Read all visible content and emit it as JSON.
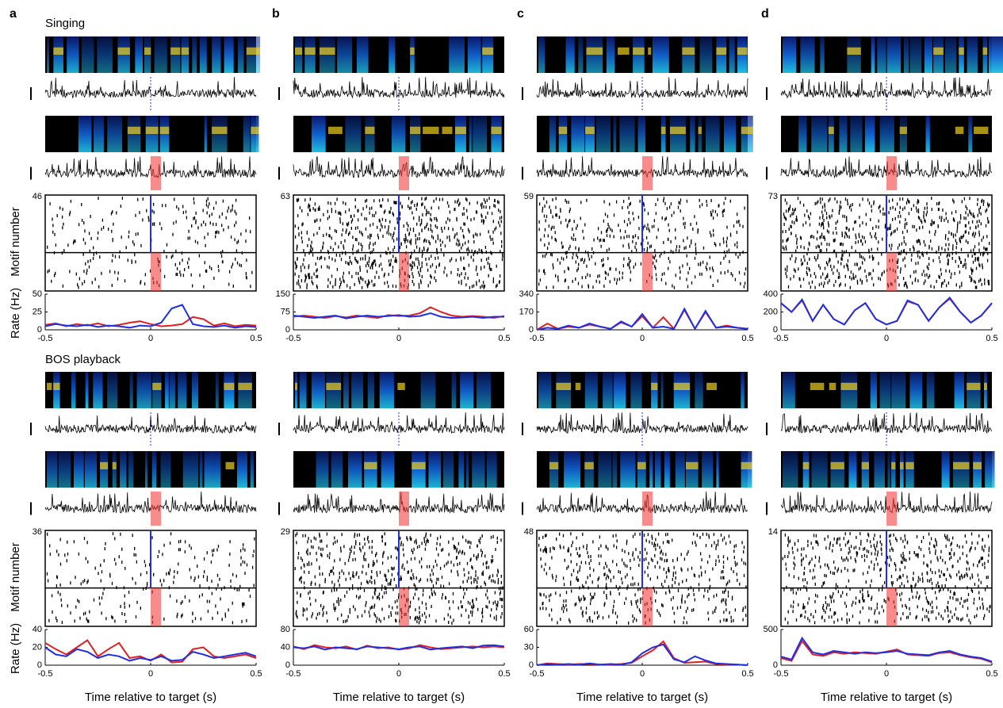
{
  "figure": {
    "panel_labels": [
      "a",
      "b",
      "c",
      "d"
    ],
    "sections": [
      "Singing",
      "BOS playback"
    ],
    "raster_ylabel": "Motif number",
    "rate_ylabel": "Rate (Hz)",
    "xlabel": "Time relative to target (s)"
  },
  "chart_data": [
    {
      "type": "line",
      "raster_yticks": [
        46
      ],
      "xlim": [
        -0.5,
        0.5
      ],
      "xticks": [
        -0.5,
        0,
        0.5
      ],
      "ylim": [
        0,
        50
      ],
      "yticks": [
        0,
        25,
        50
      ],
      "x": [
        -0.5,
        -0.45,
        -0.4,
        -0.35,
        -0.3,
        -0.25,
        -0.2,
        -0.15,
        -0.1,
        -0.05,
        0,
        0.05,
        0.1,
        0.15,
        0.2,
        0.25,
        0.3,
        0.35,
        0.4,
        0.45,
        0.5
      ],
      "series": [
        {
          "color": "#e02020",
          "values": [
            7,
            9,
            5,
            8,
            6,
            9,
            5,
            7,
            10,
            12,
            8,
            5,
            6,
            8,
            18,
            15,
            6,
            9,
            5,
            7,
            6
          ]
        },
        {
          "color": "#2030e0",
          "values": [
            5,
            8,
            6,
            5,
            7,
            4,
            6,
            5,
            3,
            6,
            5,
            10,
            30,
            35,
            8,
            5,
            4,
            6,
            3,
            5,
            4
          ]
        }
      ]
    },
    {
      "type": "line",
      "raster_yticks": [
        63
      ],
      "xlim": [
        -0.5,
        0.5
      ],
      "xticks": [
        -0.5,
        0,
        0.5
      ],
      "ylim": [
        0,
        150
      ],
      "yticks": [
        0,
        75,
        150
      ],
      "x": [
        -0.5,
        -0.45,
        -0.4,
        -0.35,
        -0.3,
        -0.25,
        -0.2,
        -0.15,
        -0.1,
        -0.05,
        0,
        0.05,
        0.1,
        0.15,
        0.2,
        0.25,
        0.3,
        0.35,
        0.4,
        0.45,
        0.5
      ],
      "series": [
        {
          "color": "#e02020",
          "values": [
            55,
            60,
            55,
            50,
            58,
            52,
            60,
            55,
            50,
            62,
            58,
            60,
            70,
            95,
            75,
            60,
            55,
            58,
            55,
            50,
            58
          ]
        },
        {
          "color": "#2030e0",
          "values": [
            60,
            55,
            50,
            55,
            60,
            48,
            55,
            60,
            55,
            58,
            62,
            55,
            58,
            70,
            55,
            50,
            52,
            55,
            50,
            55,
            55
          ]
        }
      ]
    },
    {
      "type": "line",
      "raster_yticks": [
        59
      ],
      "xlim": [
        -0.5,
        0.5
      ],
      "xticks": [
        -0.5,
        0,
        0.5
      ],
      "ylim": [
        0,
        340
      ],
      "yticks": [
        0,
        170,
        340
      ],
      "x": [
        -0.5,
        -0.45,
        -0.4,
        -0.35,
        -0.3,
        -0.25,
        -0.2,
        -0.15,
        -0.1,
        -0.05,
        0,
        0.05,
        0.1,
        0.15,
        0.2,
        0.25,
        0.3,
        0.35,
        0.4,
        0.45,
        0.5
      ],
      "series": [
        {
          "color": "#e02020",
          "values": [
            0,
            60,
            10,
            30,
            20,
            50,
            30,
            10,
            70,
            30,
            130,
            20,
            120,
            10,
            190,
            10,
            170,
            20,
            40,
            20,
            10
          ]
        },
        {
          "color": "#2030e0",
          "values": [
            0,
            20,
            10,
            40,
            20,
            60,
            30,
            10,
            80,
            30,
            150,
            20,
            30,
            10,
            200,
            10,
            180,
            20,
            30,
            20,
            10
          ]
        }
      ]
    },
    {
      "type": "line",
      "raster_yticks": [
        73
      ],
      "xlim": [
        -0.5,
        0.5
      ],
      "xticks": [
        -0.5,
        0,
        0.5
      ],
      "ylim": [
        0,
        400
      ],
      "yticks": [
        0,
        200,
        400
      ],
      "x": [
        -0.5,
        -0.45,
        -0.4,
        -0.35,
        -0.3,
        -0.25,
        -0.2,
        -0.15,
        -0.1,
        -0.05,
        0,
        0.05,
        0.1,
        0.15,
        0.2,
        0.25,
        0.3,
        0.35,
        0.4,
        0.45,
        0.5
      ],
      "series": [
        {
          "color": "#e02020",
          "values": [
            300,
            200,
            330,
            100,
            280,
            120,
            60,
            220,
            300,
            120,
            60,
            100,
            320,
            280,
            100,
            250,
            350,
            200,
            80,
            160,
            300
          ]
        },
        {
          "color": "#2030e0",
          "values": [
            300,
            200,
            340,
            100,
            280,
            120,
            60,
            220,
            300,
            120,
            60,
            100,
            330,
            280,
            100,
            250,
            360,
            200,
            80,
            160,
            300
          ]
        }
      ]
    },
    {
      "type": "line",
      "raster_yticks": [
        36
      ],
      "xlim": [
        -0.5,
        0.5
      ],
      "xticks": [
        -0.5,
        0,
        0.5
      ],
      "ylim": [
        0,
        40
      ],
      "yticks": [
        0,
        20,
        40
      ],
      "x": [
        -0.5,
        -0.45,
        -0.4,
        -0.35,
        -0.3,
        -0.25,
        -0.2,
        -0.15,
        -0.1,
        -0.05,
        0,
        0.05,
        0.1,
        0.15,
        0.2,
        0.25,
        0.3,
        0.35,
        0.4,
        0.45,
        0.5
      ],
      "series": [
        {
          "color": "#e02020",
          "values": [
            25,
            18,
            12,
            20,
            28,
            10,
            18,
            25,
            8,
            10,
            5,
            12,
            3,
            4,
            18,
            20,
            10,
            8,
            10,
            12,
            8
          ]
        },
        {
          "color": "#2030e0",
          "values": [
            20,
            12,
            10,
            18,
            15,
            8,
            12,
            10,
            5,
            8,
            6,
            10,
            5,
            6,
            15,
            12,
            8,
            10,
            12,
            14,
            10
          ]
        }
      ]
    },
    {
      "type": "line",
      "raster_yticks": [
        29
      ],
      "xlim": [
        -0.5,
        0.5
      ],
      "xticks": [
        -0.5,
        0,
        0.5
      ],
      "ylim": [
        0,
        80
      ],
      "yticks": [
        0,
        40,
        80
      ],
      "x": [
        -0.5,
        -0.45,
        -0.4,
        -0.35,
        -0.3,
        -0.25,
        -0.2,
        -0.15,
        -0.1,
        -0.05,
        0,
        0.05,
        0.1,
        0.15,
        0.2,
        0.25,
        0.3,
        0.35,
        0.4,
        0.45,
        0.5
      ],
      "series": [
        {
          "color": "#e02020",
          "values": [
            42,
            36,
            45,
            40,
            38,
            42,
            35,
            44,
            38,
            40,
            35,
            38,
            45,
            40,
            36,
            38,
            40,
            42,
            40,
            42,
            40
          ]
        },
        {
          "color": "#2030e0",
          "values": [
            40,
            38,
            42,
            35,
            40,
            38,
            36,
            42,
            40,
            38,
            36,
            40,
            42,
            35,
            38,
            40,
            42,
            38,
            44,
            45,
            42
          ]
        }
      ]
    },
    {
      "type": "line",
      "raster_yticks": [
        48
      ],
      "xlim": [
        -0.5,
        0.5
      ],
      "xticks": [
        -0.5,
        0,
        0.5
      ],
      "ylim": [
        0,
        60
      ],
      "yticks": [
        0,
        30,
        60
      ],
      "x": [
        -0.5,
        -0.45,
        -0.4,
        -0.35,
        -0.3,
        -0.25,
        -0.2,
        -0.15,
        -0.1,
        -0.05,
        0,
        0.05,
        0.1,
        0.15,
        0.2,
        0.25,
        0.3,
        0.35,
        0.4,
        0.45,
        0.5
      ],
      "series": [
        {
          "color": "#e02020",
          "values": [
            0,
            3,
            2,
            1,
            2,
            2,
            1,
            1,
            2,
            4,
            15,
            25,
            40,
            12,
            4,
            5,
            6,
            2,
            1,
            1,
            0
          ]
        },
        {
          "color": "#2030e0",
          "values": [
            0,
            2,
            1,
            2,
            1,
            3,
            1,
            2,
            1,
            5,
            20,
            30,
            35,
            10,
            5,
            15,
            8,
            3,
            2,
            1,
            0
          ]
        }
      ]
    },
    {
      "type": "line",
      "raster_yticks": [
        14
      ],
      "xlim": [
        -0.5,
        0.5
      ],
      "xticks": [
        -0.5,
        0,
        0.5
      ],
      "ylim": [
        0,
        500
      ],
      "yticks": [
        0,
        500
      ],
      "x": [
        -0.5,
        -0.45,
        -0.4,
        -0.35,
        -0.3,
        -0.25,
        -0.2,
        -0.15,
        -0.1,
        -0.05,
        0,
        0.05,
        0.1,
        0.15,
        0.2,
        0.25,
        0.3,
        0.35,
        0.4,
        0.45,
        0.5
      ],
      "series": [
        {
          "color": "#e02020",
          "values": [
            100,
            60,
            340,
            150,
            130,
            180,
            160,
            180,
            170,
            160,
            190,
            220,
            150,
            140,
            130,
            170,
            180,
            140,
            110,
            90,
            40
          ]
        },
        {
          "color": "#2030e0",
          "values": [
            120,
            80,
            380,
            180,
            150,
            200,
            180,
            160,
            180,
            170,
            180,
            200,
            160,
            150,
            140,
            180,
            200,
            150,
            120,
            100,
            50
          ]
        }
      ]
    }
  ]
}
